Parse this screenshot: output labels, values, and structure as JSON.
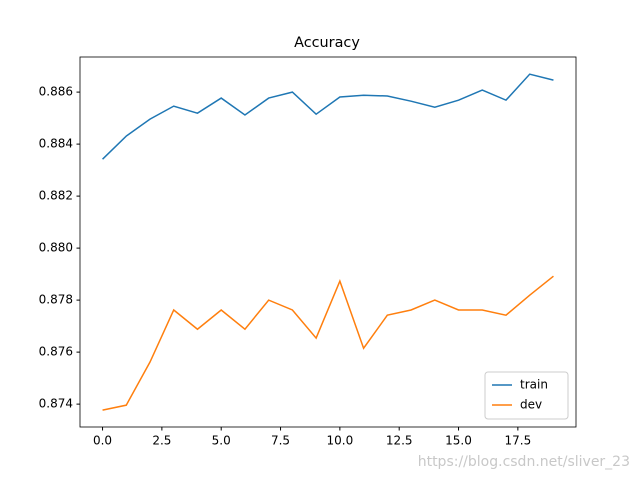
{
  "chart_data": {
    "type": "line",
    "title": "Accuracy",
    "x": [
      0,
      1,
      2,
      3,
      4,
      5,
      6,
      7,
      8,
      9,
      10,
      11,
      12,
      13,
      14,
      15,
      16,
      17,
      18,
      19
    ],
    "series": [
      {
        "name": "train",
        "color": "#1f77b4",
        "values": [
          0.88342,
          0.88431,
          0.88496,
          0.88546,
          0.88519,
          0.88577,
          0.88512,
          0.88577,
          0.886,
          0.88515,
          0.88581,
          0.88588,
          0.88585,
          0.88565,
          0.88542,
          0.88569,
          0.88608,
          0.88569,
          0.88669,
          0.88646
        ]
      },
      {
        "name": "dev",
        "color": "#ff7f0e",
        "values": [
          0.87377,
          0.87396,
          0.87562,
          0.87762,
          0.87688,
          0.87762,
          0.87688,
          0.878,
          0.87762,
          0.87654,
          0.87873,
          0.87615,
          0.87742,
          0.87762,
          0.878,
          0.87762,
          0.87762,
          0.87742,
          0.87819,
          0.87892
        ]
      }
    ],
    "xlim": [
      -0.95,
      19.95
    ],
    "xticks": [
      {
        "value": 0,
        "label": "0.0"
      },
      2.5,
      {
        "value": 5,
        "label": "5.0"
      },
      7.5,
      {
        "value": 10,
        "label": "10.0"
      },
      12.5,
      {
        "value": 15,
        "label": "15.0"
      },
      17.5
    ],
    "ylim": [
      0.87312,
      0.88735
    ],
    "yticks": [
      0.874,
      0.876,
      0.878,
      {
        "value": 0.88,
        "label": "0.880"
      },
      0.882,
      0.884,
      0.886
    ],
    "legend": "lower right",
    "watermark": "https://blog.csdn.net/sliver_23"
  }
}
